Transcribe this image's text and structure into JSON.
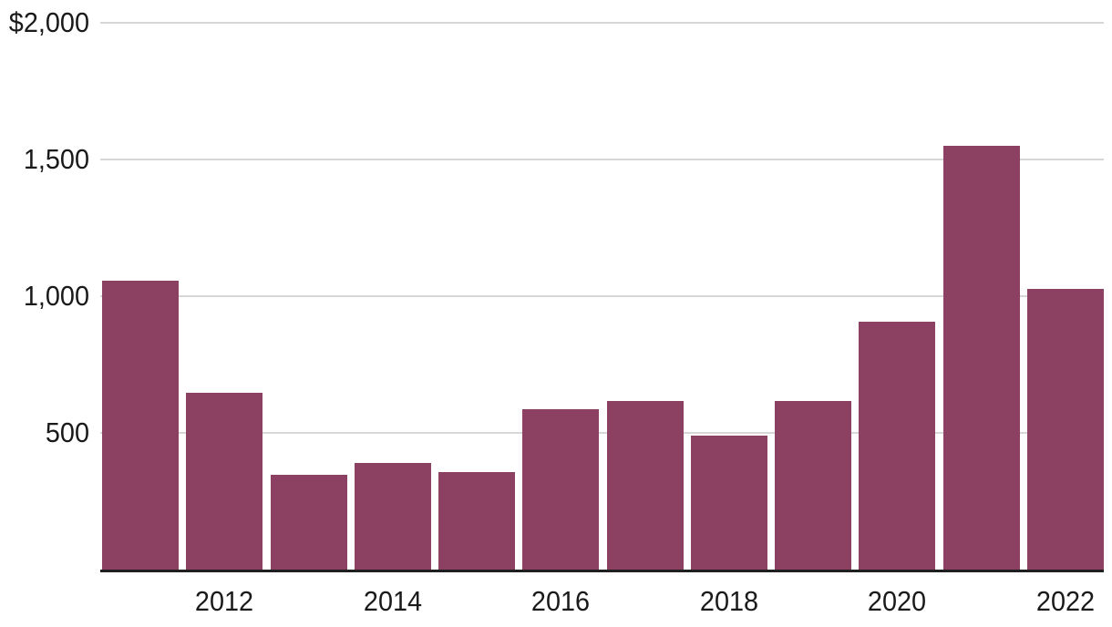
{
  "chart_data": {
    "type": "bar",
    "categories": [
      "2011",
      "2012",
      "2013",
      "2014",
      "2015",
      "2016",
      "2017",
      "2018",
      "2019",
      "2020",
      "2021",
      "2022"
    ],
    "values": [
      1055,
      645,
      345,
      390,
      355,
      585,
      615,
      490,
      615,
      905,
      1550,
      1025
    ],
    "title": "",
    "xlabel": "",
    "ylabel": "",
    "ylim": [
      0,
      2000
    ],
    "yticks": [
      {
        "value": 2000,
        "label": "$2,000"
      },
      {
        "value": 1500,
        "label": "1,500"
      },
      {
        "value": 1000,
        "label": "1,000"
      },
      {
        "value": 500,
        "label": "500"
      }
    ],
    "xticks": [
      "2012",
      "2014",
      "2016",
      "2018",
      "2020",
      "2022"
    ],
    "grid": true,
    "legend": false,
    "colors": {
      "bar": "#8c4163",
      "gridline": "#d7d7d7",
      "axis_line": "#1f1f1f",
      "text": "#1a1a1a",
      "background": "#ffffff"
    }
  }
}
